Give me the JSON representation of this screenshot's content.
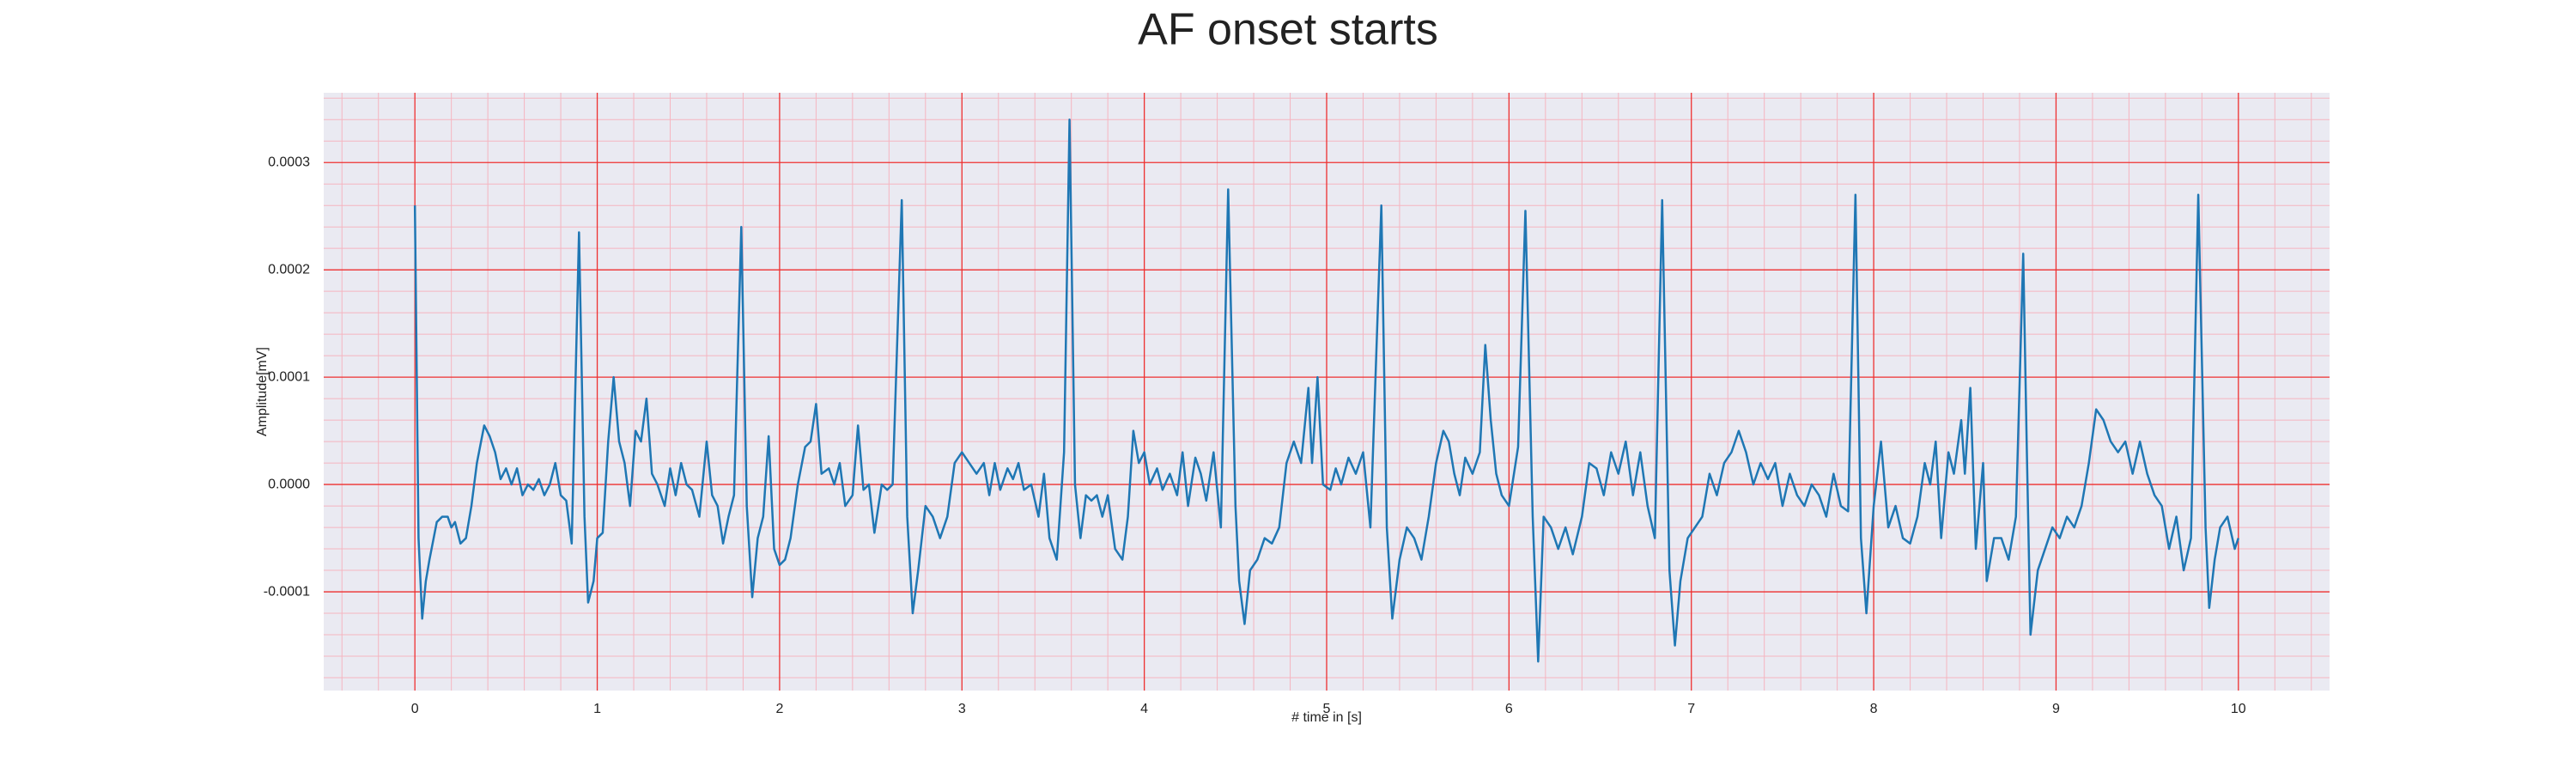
{
  "chart_data": {
    "type": "line",
    "title": "AF onset starts",
    "x_label": "# time in [s]",
    "y_label": "Amplitude[mV]",
    "color": "#1f77b4",
    "grid": true,
    "minor_grid": true,
    "xlim": [
      -0.5,
      10.5
    ],
    "ylim": [
      -0.000192,
      0.000365
    ],
    "xticks": [
      0,
      1,
      2,
      3,
      4,
      5,
      6,
      7,
      8,
      9,
      10
    ],
    "yticks": [
      {
        "value": -0.0001,
        "label": "-0.0001"
      },
      {
        "value": 0,
        "label": "0.0000"
      },
      {
        "value": 0.0001,
        "label": "0.0001"
      },
      {
        "value": 0.0002,
        "label": "0.0002"
      },
      {
        "value": 0.0003,
        "label": "0.0003"
      }
    ],
    "xminorticks": [
      -0.4,
      -0.2,
      0.2,
      0.4,
      0.6,
      0.8,
      1.2,
      1.4,
      1.6,
      1.8,
      2.2,
      2.4,
      2.6,
      2.8,
      3.2,
      3.4,
      3.6,
      3.8,
      4.2,
      4.4,
      4.6,
      4.8,
      5.2,
      5.4,
      5.6,
      5.8,
      6.2,
      6.4,
      6.6,
      6.8,
      7.2,
      7.4,
      7.6,
      7.8,
      8.2,
      8.4,
      8.6,
      8.8,
      9.2,
      9.4,
      9.6,
      9.8,
      10.2,
      10.4
    ],
    "yminorticks": [
      -0.00018,
      -0.00016,
      -0.00014,
      -0.00012,
      -8e-05,
      -6e-05,
      -4e-05,
      -2e-05,
      2e-05,
      4e-05,
      6e-05,
      8e-05,
      0.00012,
      0.00014,
      0.00016,
      0.00018,
      0.00022,
      0.00024,
      0.00026,
      0.00028,
      0.00032,
      0.00034,
      0.00036
    ],
    "x": [
      0.0,
      0.02,
      0.04,
      0.06,
      0.08,
      0.12,
      0.15,
      0.18,
      0.2,
      0.22,
      0.25,
      0.28,
      0.31,
      0.34,
      0.38,
      0.41,
      0.44,
      0.47,
      0.5,
      0.53,
      0.56,
      0.59,
      0.62,
      0.65,
      0.68,
      0.71,
      0.74,
      0.77,
      0.8,
      0.83,
      0.86,
      0.9,
      0.93,
      0.95,
      0.98,
      1.0,
      1.03,
      1.06,
      1.09,
      1.12,
      1.15,
      1.18,
      1.21,
      1.24,
      1.27,
      1.3,
      1.33,
      1.37,
      1.4,
      1.43,
      1.46,
      1.49,
      1.52,
      1.56,
      1.6,
      1.63,
      1.66,
      1.69,
      1.72,
      1.75,
      1.79,
      1.82,
      1.85,
      1.88,
      1.91,
      1.94,
      1.97,
      2.0,
      2.03,
      2.06,
      2.1,
      2.14,
      2.17,
      2.2,
      2.23,
      2.27,
      2.3,
      2.33,
      2.36,
      2.4,
      2.43,
      2.46,
      2.49,
      2.52,
      2.56,
      2.59,
      2.62,
      2.67,
      2.7,
      2.73,
      2.76,
      2.8,
      2.84,
      2.88,
      2.92,
      2.96,
      3.0,
      3.04,
      3.08,
      3.12,
      3.15,
      3.18,
      3.21,
      3.25,
      3.28,
      3.31,
      3.34,
      3.38,
      3.42,
      3.45,
      3.48,
      3.52,
      3.56,
      3.59,
      3.62,
      3.65,
      3.68,
      3.71,
      3.74,
      3.77,
      3.8,
      3.84,
      3.88,
      3.91,
      3.94,
      3.97,
      4.0,
      4.03,
      4.07,
      4.1,
      4.14,
      4.18,
      4.21,
      4.24,
      4.28,
      4.31,
      4.34,
      4.38,
      4.42,
      4.46,
      4.5,
      4.52,
      4.55,
      4.58,
      4.62,
      4.66,
      4.7,
      4.74,
      4.78,
      4.82,
      4.86,
      4.9,
      4.92,
      4.95,
      4.98,
      5.02,
      5.05,
      5.08,
      5.12,
      5.16,
      5.2,
      5.24,
      5.3,
      5.33,
      5.36,
      5.4,
      5.44,
      5.48,
      5.52,
      5.56,
      5.6,
      5.64,
      5.67,
      5.7,
      5.73,
      5.76,
      5.8,
      5.84,
      5.87,
      5.9,
      5.93,
      5.96,
      6.0,
      6.05,
      6.09,
      6.13,
      6.16,
      6.19,
      6.23,
      6.27,
      6.31,
      6.35,
      6.4,
      6.44,
      6.48,
      6.52,
      6.56,
      6.6,
      6.64,
      6.68,
      6.72,
      6.76,
      6.8,
      6.84,
      6.88,
      6.91,
      6.94,
      6.98,
      7.02,
      7.06,
      7.1,
      7.14,
      7.18,
      7.22,
      7.26,
      7.3,
      7.34,
      7.38,
      7.42,
      7.46,
      7.5,
      7.54,
      7.58,
      7.62,
      7.66,
      7.7,
      7.74,
      7.78,
      7.82,
      7.86,
      7.9,
      7.93,
      7.96,
      8.0,
      8.04,
      8.08,
      8.12,
      8.16,
      8.2,
      8.24,
      8.28,
      8.31,
      8.34,
      8.37,
      8.41,
      8.44,
      8.48,
      8.5,
      8.53,
      8.56,
      8.6,
      8.62,
      8.66,
      8.7,
      8.74,
      8.78,
      8.82,
      8.84,
      8.86,
      8.9,
      8.94,
      8.98,
      9.02,
      9.06,
      9.1,
      9.14,
      9.18,
      9.22,
      9.26,
      9.3,
      9.34,
      9.38,
      9.42,
      9.46,
      9.5,
      9.54,
      9.58,
      9.62,
      9.66,
      9.7,
      9.74,
      9.78,
      9.82,
      9.84,
      9.87,
      9.9,
      9.94,
      9.98,
      10.0
    ],
    "values": [
      0.00026,
      -5e-05,
      -0.000125,
      -9e-05,
      -7e-05,
      -3.5e-05,
      -3e-05,
      -3e-05,
      -4e-05,
      -3.5e-05,
      -5.5e-05,
      -5e-05,
      -2e-05,
      2e-05,
      5.5e-05,
      4.5e-05,
      3e-05,
      5e-06,
      1.5e-05,
      0,
      1.5e-05,
      -1e-05,
      0,
      -5e-06,
      5e-06,
      -1e-05,
      0,
      2e-05,
      -1e-05,
      -1.5e-05,
      -5.5e-05,
      0.000235,
      -3e-05,
      -0.00011,
      -9e-05,
      -5e-05,
      -4.5e-05,
      4e-05,
      0.0001,
      4e-05,
      2e-05,
      -2e-05,
      5e-05,
      4e-05,
      8e-05,
      1e-05,
      0,
      -2e-05,
      1.5e-05,
      -1e-05,
      2e-05,
      0,
      -5e-06,
      -3e-05,
      4e-05,
      -1e-05,
      -2e-05,
      -5.5e-05,
      -3e-05,
      -1e-05,
      0.00024,
      -2e-05,
      -0.000105,
      -5e-05,
      -3e-05,
      4.5e-05,
      -6e-05,
      -7.5e-05,
      -7e-05,
      -5e-05,
      0,
      3.5e-05,
      4e-05,
      7.5e-05,
      1e-05,
      1.5e-05,
      0,
      2e-05,
      -2e-05,
      -1e-05,
      5.5e-05,
      -5e-06,
      0,
      -4.5e-05,
      0,
      -5e-06,
      0,
      0.000265,
      -3e-05,
      -0.00012,
      -8e-05,
      -2e-05,
      -3e-05,
      -5e-05,
      -3e-05,
      2e-05,
      3e-05,
      2e-05,
      1e-05,
      2e-05,
      -1e-05,
      2e-05,
      -5e-06,
      1.5e-05,
      5e-06,
      2e-05,
      -5e-06,
      0,
      -3e-05,
      1e-05,
      -5e-05,
      -7e-05,
      3e-05,
      0.00034,
      0,
      -5e-05,
      -1e-05,
      -1.5e-05,
      -1e-05,
      -3e-05,
      -1e-05,
      -6e-05,
      -7e-05,
      -3e-05,
      5e-05,
      2e-05,
      3e-05,
      0,
      1.5e-05,
      -5e-06,
      1e-05,
      -1e-05,
      3e-05,
      -2e-05,
      2.5e-05,
      1e-05,
      -1.5e-05,
      3e-05,
      -4e-05,
      0.000275,
      -2e-05,
      -9e-05,
      -0.00013,
      -8e-05,
      -7e-05,
      -5e-05,
      -5.5e-05,
      -4e-05,
      2e-05,
      4e-05,
      2e-05,
      9e-05,
      2e-05,
      0.0001,
      0,
      -5e-06,
      1.5e-05,
      0,
      2.5e-05,
      1e-05,
      3e-05,
      -4e-05,
      0.00026,
      -4e-05,
      -0.000125,
      -7e-05,
      -4e-05,
      -5e-05,
      -7e-05,
      -3e-05,
      2e-05,
      5e-05,
      4e-05,
      1e-05,
      -1e-05,
      2.5e-05,
      1e-05,
      3e-05,
      0.00013,
      6e-05,
      1e-05,
      -1e-05,
      -2e-05,
      3.5e-05,
      0.000255,
      -3e-05,
      -0.000165,
      -3e-05,
      -4e-05,
      -6e-05,
      -4e-05,
      -6.5e-05,
      -3e-05,
      2e-05,
      1.5e-05,
      -1e-05,
      3e-05,
      1e-05,
      4e-05,
      -1e-05,
      3e-05,
      -2e-05,
      -5e-05,
      0.000265,
      -8e-05,
      -0.00015,
      -9e-05,
      -5e-05,
      -4e-05,
      -3e-05,
      1e-05,
      -1e-05,
      2e-05,
      3e-05,
      5e-05,
      3e-05,
      0,
      2e-05,
      5e-06,
      2e-05,
      -2e-05,
      1e-05,
      -1e-05,
      -2e-05,
      0,
      -1e-05,
      -3e-05,
      1e-05,
      -2e-05,
      -2.5e-05,
      0.00027,
      -5e-05,
      -0.00012,
      -2e-05,
      4e-05,
      -4e-05,
      -2e-05,
      -5e-05,
      -5.5e-05,
      -3e-05,
      2e-05,
      0,
      4e-05,
      -5e-05,
      3e-05,
      1e-05,
      6e-05,
      1e-05,
      9e-05,
      -6e-05,
      2e-05,
      -9e-05,
      -5e-05,
      -5e-05,
      -7e-05,
      -3e-05,
      0.000215,
      3e-05,
      -0.00014,
      -8e-05,
      -6e-05,
      -4e-05,
      -5e-05,
      -3e-05,
      -4e-05,
      -2e-05,
      2e-05,
      7e-05,
      6e-05,
      4e-05,
      3e-05,
      4e-05,
      1e-05,
      4e-05,
      1e-05,
      -1e-05,
      -2e-05,
      -6e-05,
      -3e-05,
      -8e-05,
      -5e-05,
      0.00027,
      -4e-05,
      -0.000115,
      -7e-05,
      -4e-05,
      -3e-05,
      -6e-05,
      -5e-05
    ]
  }
}
